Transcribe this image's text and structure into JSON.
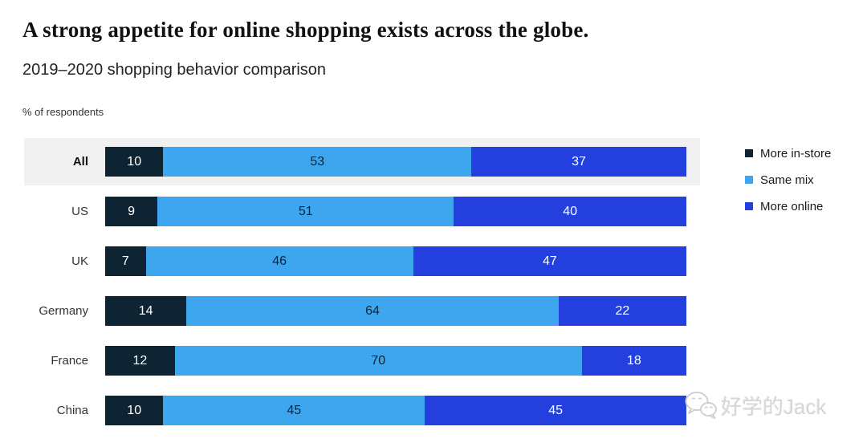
{
  "header": {
    "title": "A strong appetite for online shopping exists across the globe.",
    "subtitle": "2019–2020 shopping behavior comparison",
    "units": "% of respondents"
  },
  "chart_data": {
    "type": "bar",
    "stacked": true,
    "orientation": "horizontal",
    "title": "A strong appetite for online shopping exists across the globe.",
    "subtitle": "2019–2020 shopping behavior comparison",
    "xlabel": "% of respondents",
    "xlim": [
      0,
      100
    ],
    "grid": false,
    "legend_position": "right",
    "value_labels": "inside-center",
    "highlighted_category": "All",
    "highlight_band_color": "#f1f1f1",
    "categories": [
      "All",
      "US",
      "UK",
      "Germany",
      "France",
      "China"
    ],
    "series": [
      {
        "name": "More in-store",
        "color": "#0e2433",
        "label_color": "#ffffff",
        "values": [
          10,
          9,
          7,
          14,
          12,
          10
        ]
      },
      {
        "name": "Same mix",
        "color": "#3ea6ef",
        "label_color": "#0e2433",
        "values": [
          53,
          51,
          46,
          64,
          70,
          45
        ]
      },
      {
        "name": "More online",
        "color": "#2340df",
        "label_color": "#ffffff",
        "values": [
          37,
          40,
          47,
          22,
          18,
          45
        ]
      }
    ]
  },
  "legend": {
    "items": [
      {
        "label": "More in-store",
        "color": "#0e2433"
      },
      {
        "label": "Same mix",
        "color": "#3ea6ef"
      },
      {
        "label": "More online",
        "color": "#2340df"
      }
    ]
  },
  "watermark": {
    "text": "好学的Jack",
    "icon": "wechat-icon",
    "color": "#d6d6d6"
  }
}
